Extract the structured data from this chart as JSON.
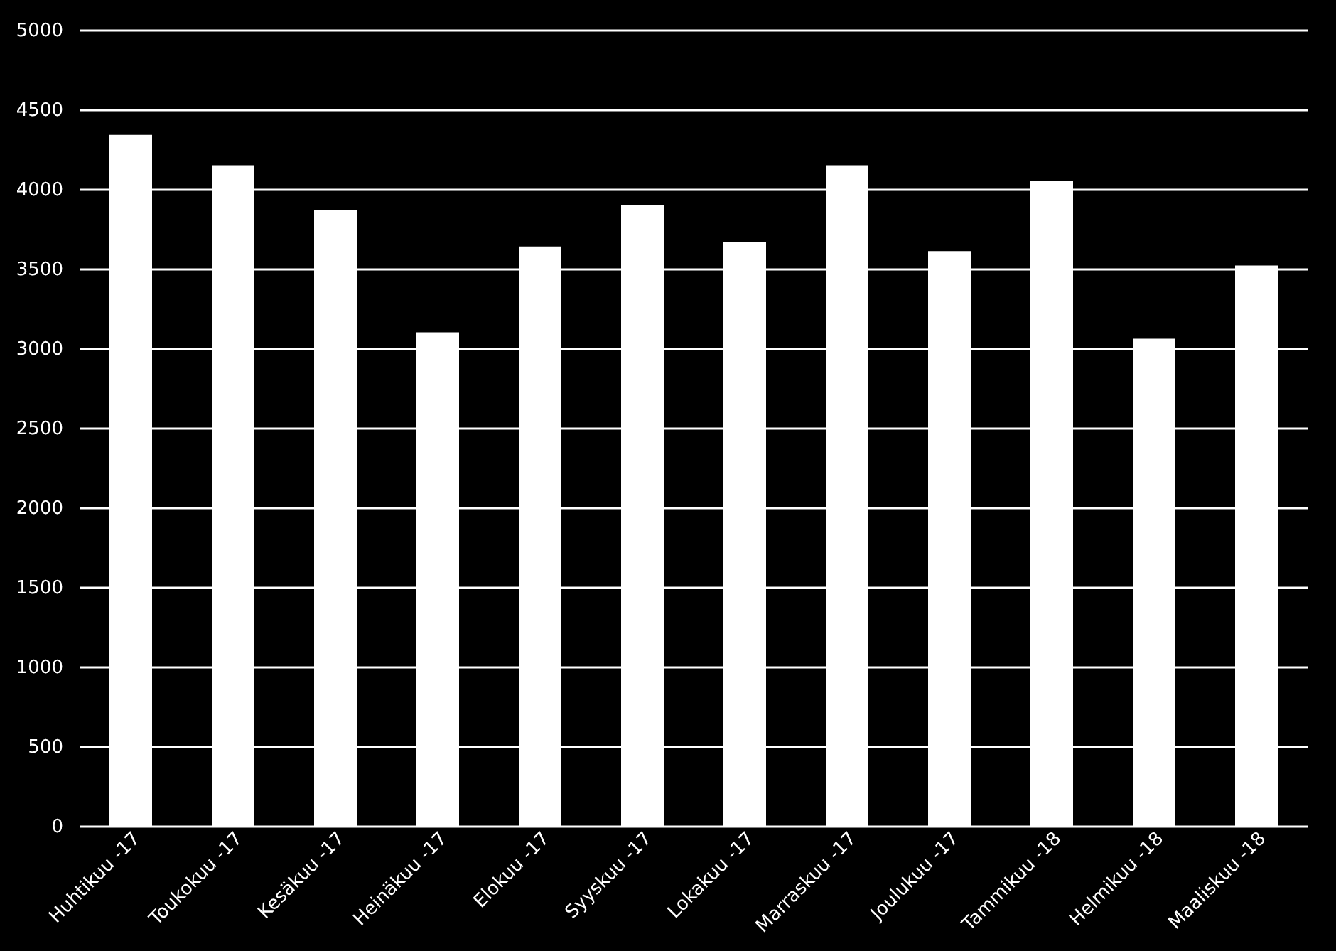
{
  "chart_data": {
    "type": "bar",
    "categories": [
      "Huhtikuu -17",
      "Toukokuu -17",
      "Kesäkuu -17",
      "Heinäkuu -17",
      "Elokuu -17",
      "Syyskuu -17",
      "Lokakuu -17",
      "Marraskuu -17",
      "Joulukuu -17",
      "Tammikuu -18",
      "Helmikuu -18",
      "Maaliskuu -18"
    ],
    "values": [
      4340,
      4150,
      3870,
      3100,
      3640,
      3900,
      3670,
      4150,
      3610,
      4050,
      3060,
      3520
    ],
    "color": "#ffffff",
    "ylim": [
      0,
      5000
    ],
    "yticks": [
      0,
      500,
      1000,
      1500,
      2000,
      2500,
      3000,
      3500,
      4000,
      4500,
      5000
    ],
    "grid": "y"
  }
}
